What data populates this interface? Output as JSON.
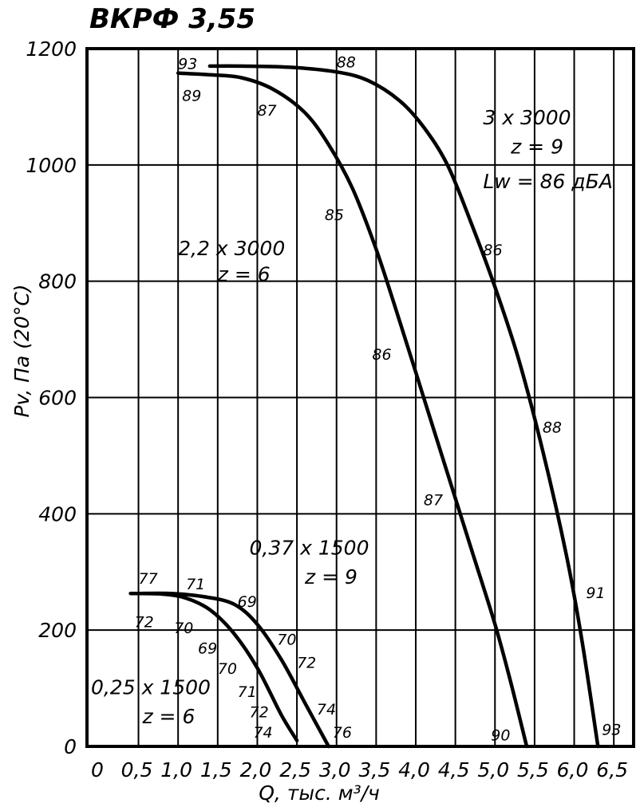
{
  "chart_data": {
    "type": "line",
    "title": "ВКРФ 3,55",
    "xlabel": "Q, тыс. м³/ч",
    "ylabel": "Pv, Па (20°С)",
    "xlim": [
      0,
      6.5
    ],
    "ylim": [
      0,
      1200
    ],
    "x_ticks": [
      "0",
      "0,5",
      "1,0",
      "1,5",
      "2,0",
      "2,5",
      "3,0",
      "3,5",
      "4,0",
      "4,5",
      "5,0",
      "5,5",
      "6,0",
      "6,5"
    ],
    "y_ticks": [
      "0",
      "200",
      "400",
      "600",
      "800",
      "1000",
      "1200"
    ],
    "grid": true,
    "series": [
      {
        "x": [
          1.0,
          1.4,
          1.8,
          2.2,
          2.6,
          2.9,
          3.2,
          3.5,
          3.8,
          4.1,
          4.4,
          4.7,
          5.0,
          5.2,
          5.4
        ],
        "y": [
          1158,
          1155,
          1150,
          1130,
          1090,
          1035,
          960,
          855,
          730,
          600,
          470,
          340,
          210,
          110,
          0
        ]
      },
      {
        "x": [
          1.4,
          1.8,
          2.4,
          3.0,
          3.4,
          3.8,
          4.1,
          4.4,
          4.7,
          5.0,
          5.3,
          5.6,
          5.9,
          6.1,
          6.3
        ],
        "y": [
          1170,
          1170,
          1168,
          1160,
          1145,
          1110,
          1065,
          1000,
          900,
          790,
          665,
          510,
          330,
          180,
          0
        ]
      },
      {
        "x": [
          0.4,
          0.8,
          1.1,
          1.4,
          1.7,
          2.0,
          2.3,
          2.5
        ],
        "y": [
          263,
          262,
          255,
          235,
          195,
          135,
          55,
          10
        ]
      },
      {
        "x": [
          0.5,
          0.9,
          1.3,
          1.7,
          2.0,
          2.3,
          2.6,
          2.9
        ],
        "y": [
          263,
          263,
          258,
          245,
          210,
          150,
          75,
          0
        ]
      }
    ],
    "annotations": [
      {
        "text": "2,2 x 3000",
        "x": 1.0,
        "y": 845
      },
      {
        "text": "z = 6",
        "x": 1.5,
        "y": 800
      },
      {
        "text": "3 x 3000",
        "x": 4.85,
        "y": 1070
      },
      {
        "text": "z = 9",
        "x": 5.2,
        "y": 1020
      },
      {
        "text": "Lw = 86 дБА",
        "x": 4.85,
        "y": 960
      },
      {
        "text": "0,37 x 1500",
        "x": 1.9,
        "y": 330
      },
      {
        "text": "z = 9",
        "x": 2.6,
        "y": 280
      },
      {
        "text": "0,25 x 1500",
        "x": -0.1,
        "y": 90
      },
      {
        "text": "z = 6",
        "x": 0.55,
        "y": 40
      }
    ],
    "point_labels": [
      {
        "text": "93",
        "x": 1.0,
        "y": 1165
      },
      {
        "text": "89",
        "x": 1.05,
        "y": 1110
      },
      {
        "text": "88",
        "x": 3.0,
        "y": 1168
      },
      {
        "text": "87",
        "x": 2.0,
        "y": 1085
      },
      {
        "text": "85",
        "x": 2.85,
        "y": 905
      },
      {
        "text": "86",
        "x": 4.85,
        "y": 845
      },
      {
        "text": "86",
        "x": 3.45,
        "y": 665
      },
      {
        "text": "88",
        "x": 5.6,
        "y": 540
      },
      {
        "text": "87",
        "x": 4.1,
        "y": 415
      },
      {
        "text": "91",
        "x": 6.15,
        "y": 255
      },
      {
        "text": "90",
        "x": 4.95,
        "y": 10
      },
      {
        "text": "93",
        "x": 6.35,
        "y": 20
      },
      {
        "text": "77",
        "x": 0.5,
        "y": 280
      },
      {
        "text": "71",
        "x": 1.1,
        "y": 270
      },
      {
        "text": "69",
        "x": 1.75,
        "y": 240
      },
      {
        "text": "72",
        "x": 0.45,
        "y": 205
      },
      {
        "text": "70",
        "x": 0.95,
        "y": 195
      },
      {
        "text": "70",
        "x": 2.25,
        "y": 175
      },
      {
        "text": "69",
        "x": 1.25,
        "y": 160
      },
      {
        "text": "72",
        "x": 2.5,
        "y": 135
      },
      {
        "text": "70",
        "x": 1.5,
        "y": 125
      },
      {
        "text": "71",
        "x": 1.75,
        "y": 85
      },
      {
        "text": "74",
        "x": 2.75,
        "y": 55
      },
      {
        "text": "72",
        "x": 1.9,
        "y": 50
      },
      {
        "text": "74",
        "x": 1.95,
        "y": 15
      },
      {
        "text": "76",
        "x": 2.95,
        "y": 15
      }
    ]
  }
}
